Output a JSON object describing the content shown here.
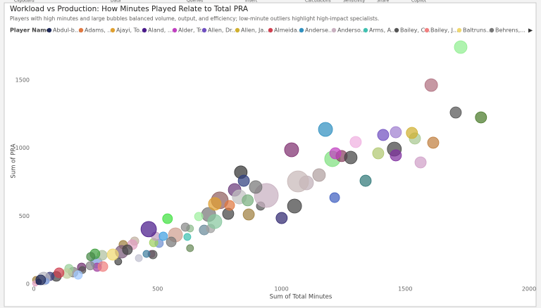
{
  "ribbon": [
    "Clipboard",
    "Data",
    "Queries",
    "Insert",
    "Calculations",
    "Sensitivity",
    "Share",
    "Copilot"
  ],
  "chart_data": {
    "type": "scatter",
    "title": "Workload vs Production: How Minutes Played Relate to Total PRA",
    "subtitle": "Players with high minutes and large bubbles balanced volume, output, and efficiency; low-minute outliers highlight high-impact specialists.",
    "legend_title": "Player Name",
    "x_label": "Sum of Total Minutes",
    "y_label": "Sum of PRA",
    "xlim": [
      0,
      2000
    ],
    "xticks": [
      0,
      500,
      1000,
      1500,
      2000
    ],
    "ylim": [
      0,
      1810
    ],
    "yticks": [
      0,
      500,
      1000,
      1500
    ],
    "grid": false,
    "legend": "top",
    "series": [
      {
        "name": "Abdul-b...",
        "color": "#1f2a5a",
        "x": [
          28
        ],
        "values": [
          31
        ],
        "sizes": [
          7
        ]
      },
      {
        "name": "Adams, ...",
        "color": "#e07840",
        "x": [
          791
        ],
        "values": [
          579
        ],
        "sizes": [
          7
        ]
      },
      {
        "name": "Ajayi, To...",
        "color": "#e0a030",
        "x": [
          731
        ],
        "values": [
          590
        ],
        "sizes": [
          9
        ]
      },
      {
        "name": "Aland, ...",
        "color": "#4a1a8a",
        "x": [
          464
        ],
        "values": [
          404
        ],
        "sizes": [
          11
        ]
      },
      {
        "name": "Alder, Tr...",
        "color": "#c040c0",
        "x": [
          1218
        ],
        "values": [
          962
        ],
        "sizes": [
          8
        ]
      },
      {
        "name": "Allen, Dr...",
        "color": "#7050c0",
        "x": [
          1411
        ],
        "values": [
          1097
        ],
        "sizes": [
          8
        ]
      },
      {
        "name": "Allen, Ja...",
        "color": "#d0b030",
        "x": [
          1527
        ],
        "values": [
          1112
        ],
        "sizes": [
          8
        ]
      },
      {
        "name": "Almeida...",
        "color": "#d04050",
        "x": [
          102
        ],
        "values": [
          83
        ],
        "sizes": [
          7
        ]
      },
      {
        "name": "Anderse...",
        "color": "#3090c0",
        "x": [
          1178
        ],
        "values": [
          1138
        ],
        "sizes": [
          10
        ]
      },
      {
        "name": "Anderso...",
        "color": "#c8b0c0",
        "x": [
          939
        ],
        "values": [
          652
        ],
        "sizes": [
          17
        ]
      },
      {
        "name": "Arms, A...",
        "color": "#40c0b0",
        "x": [
          620
        ],
        "values": [
          347
        ],
        "sizes": [
          5
        ]
      },
      {
        "name": "Bailey, C...",
        "color": "#555555",
        "x": [
          1704
        ],
        "values": [
          1262
        ],
        "sizes": [
          8
        ]
      },
      {
        "name": "Bailey, J...",
        "color": "#f08080",
        "x": [
          279
        ],
        "values": [
          129
        ],
        "sizes": [
          7
        ]
      },
      {
        "name": "Baltruns...",
        "color": "#f0d870",
        "x": [
          319
        ],
        "values": [
          217
        ],
        "sizes": [
          8
        ]
      },
      {
        "name": "Behrens,...",
        "color": "#777777",
        "x": [
          896
        ],
        "values": [
          714
        ],
        "sizes": [
          9
        ]
      },
      {
        "x": [
          1724,
          1605,
          1806,
          1300,
          1462,
          1539,
          1613,
          1562,
          1456,
          1462,
          1391,
          1041,
          1206,
          1243,
          1280,
          1340,
          1215,
          1152,
          1101,
          1067,
          1053,
          1001,
          836,
          848,
          811,
          830,
          864,
          916,
          868,
          785,
          751,
          706,
          688,
          714,
          631,
          666,
          612,
          631,
          540,
          572,
          555,
          506,
          484,
          492,
          523,
          475,
          481,
          455,
          424,
          407,
          398,
          361,
          355,
          378,
          341,
          253,
          256,
          276,
          247,
          230,
          193,
          196,
          159,
          142,
          134,
          91,
          65,
          40,
          9,
          6,
          20,
          51,
          228,
          179,
          731
        ],
        "values": [
          1743,
          1464,
          1226,
          1045,
          1117,
          1071,
          1040,
          895,
          993,
          947,
          962,
          988,
          921,
          942,
          931,
          760,
          636,
          802,
          745,
          755,
          574,
          486,
          823,
          760,
          693,
          641,
          616,
          574,
          512,
          517,
          616,
          512,
          398,
          409,
          409,
          497,
          419,
          264,
          481,
          362,
          310,
          300,
          305,
          352,
          352,
          222,
          217,
          222,
          191,
          316,
          290,
          290,
          238,
          253,
          166,
          160,
          124,
          212,
          222,
          202,
          124,
          103,
          88,
          114,
          78,
          57,
          57,
          41,
          31,
          5,
          16,
          21,
          135,
          67,
          460
        ],
        "sizes": [
          9,
          9,
          8,
          8,
          8,
          8,
          8,
          8,
          10,
          8,
          8,
          10,
          11,
          8,
          9,
          8,
          7,
          9,
          10,
          15,
          10,
          8,
          9,
          8,
          9,
          10,
          8,
          6,
          8,
          8,
          12,
          10,
          7,
          6,
          5,
          6,
          6,
          5,
          7,
          10,
          7,
          6,
          6,
          6,
          6,
          5,
          6,
          5,
          5,
          6,
          7,
          6,
          9,
          7,
          5,
          8,
          6,
          7,
          7,
          6,
          6,
          5,
          7,
          6,
          7,
          7,
          6,
          9,
          5,
          4,
          4,
          4,
          6,
          6,
          10
        ],
        "colors": [
          "#90ee90",
          "#b07080",
          "#4a7a2a",
          "#f0b0e0",
          "#a080d0",
          "#a8c890",
          "#c08040",
          "#d0a0c8",
          "#444444",
          "#8030a0",
          "#b0c870",
          "#803070",
          "#80e080",
          "#884060",
          "#444444",
          "#307878",
          "#4060c0",
          "#b0a0a0",
          "#c0b0b8",
          "#c8b8b8",
          "#444444",
          "#302870",
          "#333333",
          "#304080",
          "#6a3a7a",
          "#c0c0c0",
          "#7ab080",
          "#555555",
          "#a08040",
          "#444444",
          "#906060",
          "#777777",
          "#6a8a9a",
          "#a0a0a0",
          "#8fbc8f",
          "#a0f0a0",
          "#888888",
          "#6a8a5a",
          "#40e040",
          "#d0a090",
          "#777777",
          "#7090d0",
          "#a0d060",
          "#c0a0c0",
          "#40a0e0",
          "#a06090",
          "#555555",
          "#4080a0",
          "#c0c0d0",
          "#c0b0a0",
          "#e0a0c0",
          "#a08040",
          "#7a5a7a",
          "#444444",
          "#444444",
          "#80a0e0",
          "#a040a0",
          "#b0c0a0",
          "#40a040",
          "#4a8a4a",
          "#703070",
          "#555555",
          "#808080",
          "#9ad09a",
          "#c0d0a0",
          "#444444",
          "#404080",
          "#b8b8c0",
          "#a08040",
          "#e0a0c0",
          "#2a2a5a",
          "#80a0e0",
          "#888888",
          "#a0c8ff",
          "#88c8a0"
        ]
      }
    ]
  }
}
